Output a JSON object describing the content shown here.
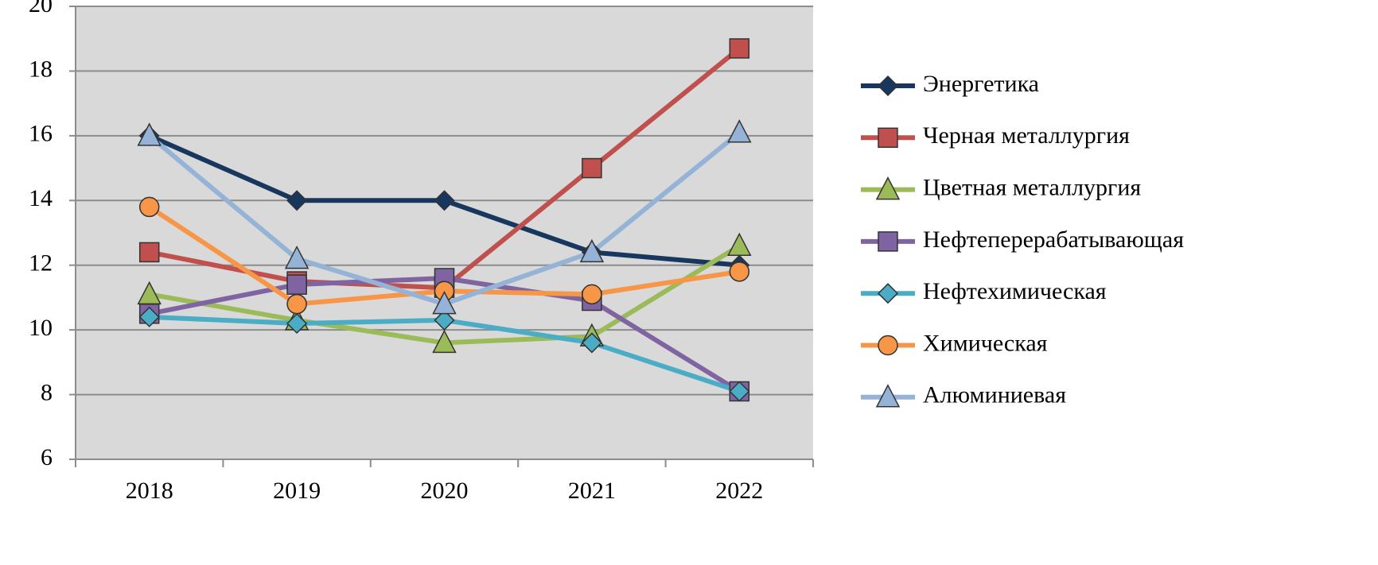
{
  "chart_data": {
    "type": "line",
    "categories": [
      "2018",
      "2019",
      "2020",
      "2021",
      "2022"
    ],
    "series": [
      {
        "name": "Энергетика",
        "color": "#17375e",
        "marker": "diamond",
        "values": [
          16,
          14,
          14,
          12.4,
          12.0
        ]
      },
      {
        "name": "Черная металлургия",
        "color": "#c0504d",
        "marker": "square",
        "values": [
          12.4,
          11.5,
          11.3,
          15,
          18.7
        ]
      },
      {
        "name": "Цветная металлургия",
        "color": "#9bbb59",
        "marker": "triangle",
        "values": [
          11.1,
          10.3,
          9.6,
          9.8,
          12.6
        ]
      },
      {
        "name": "Нефтеперерабатывающая",
        "color": "#8064a2",
        "marker": "square",
        "values": [
          10.5,
          11.4,
          11.6,
          10.9,
          8.1
        ]
      },
      {
        "name": "Нефтехимическая",
        "color": "#4bacc6",
        "marker": "diamond",
        "values": [
          10.4,
          10.2,
          10.3,
          9.6,
          8.1
        ]
      },
      {
        "name": "Химическая",
        "color": "#f79646",
        "marker": "circle",
        "values": [
          13.8,
          10.8,
          11.2,
          11.1,
          11.8
        ]
      },
      {
        "name": "Алюминиевая",
        "color": "#95b3d7",
        "marker": "triangle",
        "values": [
          16,
          12.2,
          10.8,
          12.4,
          16.1
        ]
      }
    ],
    "ylim": [
      6,
      20
    ],
    "yticks": [
      6,
      8,
      10,
      12,
      14,
      16,
      18,
      20
    ],
    "grid": true,
    "legend": "right"
  }
}
